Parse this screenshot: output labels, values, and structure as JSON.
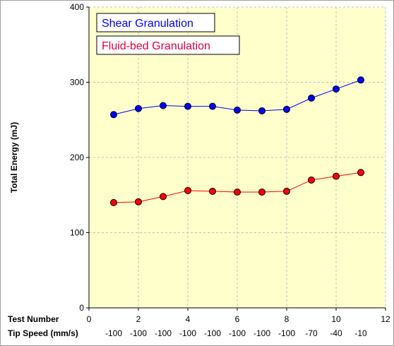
{
  "chart_data": {
    "type": "line",
    "ylabel": "Total Energy (mJ)",
    "xlim": [
      0,
      12
    ],
    "ylim": [
      0,
      400
    ],
    "x_ticks": [
      0,
      2,
      4,
      6,
      8,
      10,
      12
    ],
    "y_ticks": [
      0,
      100,
      200,
      300,
      400
    ],
    "grid": true,
    "row_labels": [
      "Test Number",
      "Tip Speed (mm/s)"
    ],
    "tip_speeds": [
      "-100",
      "-100",
      "-100",
      "-100",
      "-100",
      "-100",
      "-100",
      "-100",
      "-70",
      "-40",
      "-10"
    ],
    "legend_position": "top-left",
    "x": [
      1,
      2,
      3,
      4,
      5,
      6,
      7,
      8,
      9,
      10,
      11
    ],
    "series": [
      {
        "name": "Shear Granulation",
        "color": "#0000ff",
        "values": [
          257,
          265,
          269,
          268,
          268,
          263,
          262,
          264,
          279,
          291,
          303
        ]
      },
      {
        "name": "Fluid-bed Granulation",
        "color": "#ff0000",
        "legend_text_color": "#e0003c",
        "values": [
          140,
          141,
          148,
          156,
          155,
          154,
          154,
          155,
          170,
          175,
          180
        ]
      }
    ]
  },
  "colors": {
    "plot_background": "#ffffcc",
    "grid": "#c0c0c0",
    "axis": "#000000"
  }
}
